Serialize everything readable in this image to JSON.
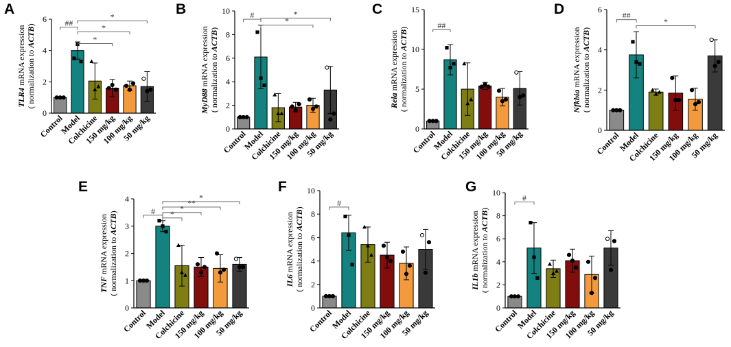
{
  "figure": {
    "background": "#ffffff"
  },
  "colors": [
    "#8a8a8a",
    "#14827e",
    "#7e7e14",
    "#820d0d",
    "#f39a3d",
    "#3a3a3a"
  ],
  "chart_data": [
    {
      "panel": "A",
      "type": "bar",
      "categories": [
        "Control",
        "Model",
        "Colchicine",
        "150 mg/kg",
        "100 mg/kg",
        "50 mg/kg"
      ],
      "values": [
        1.0,
        4.0,
        2.05,
        1.6,
        1.75,
        1.7
      ],
      "errors": [
        0.02,
        0.55,
        1.15,
        0.55,
        0.3,
        0.95
      ],
      "points": [
        [
          1,
          1,
          1
        ],
        [
          3.5,
          4.4,
          3.3
        ],
        [
          3.3,
          1.5,
          1.7
        ],
        [
          1.6,
          1.8,
          1.5
        ],
        [
          1.75,
          1.5,
          1.9
        ],
        [
          2.2,
          1.4,
          1.5
        ]
      ],
      "markers": [
        "circle",
        "square",
        "triangle",
        "circle",
        "circle",
        "circle"
      ],
      "ylabel_gene": "TLR4",
      "ylabel_rest": " mRNA expression",
      "ylabel_line2_pre": "( normalization to ",
      "ylabel_line2_gene": "ACTB",
      "ylabel_line2_post": ")",
      "ylim": [
        0,
        6
      ],
      "yticks": [
        "0",
        "2",
        "4",
        "6"
      ],
      "yticks_values": [
        0,
        2,
        4,
        6
      ],
      "significance": [
        {
          "from": 0,
          "to": 1,
          "label": "##",
          "level": 5.5
        },
        {
          "from": 1,
          "to": 5,
          "label": "*",
          "level": 5.9
        },
        {
          "from": 1,
          "to": 4,
          "label": "*",
          "level": 5.2
        },
        {
          "from": 1,
          "to": 3,
          "label": "*",
          "level": 4.45
        }
      ]
    },
    {
      "panel": "B",
      "type": "bar",
      "categories": [
        "Control",
        "Model",
        "Colchicine",
        "150 mg/kg",
        "100 mg/kg",
        "50 mg/kg"
      ],
      "values": [
        1.0,
        6.1,
        1.8,
        1.85,
        2.0,
        3.3
      ],
      "errors": [
        0.02,
        2.7,
        1.2,
        0.4,
        0.6,
        2.0
      ],
      "points": [
        [
          1,
          1,
          1
        ],
        [
          8.2,
          4.3,
          3.7
        ],
        [
          2.9,
          1.3,
          1.3
        ],
        [
          1.9,
          1.6,
          2.1
        ],
        [
          2.5,
          1.7,
          1.9
        ],
        [
          5.2,
          0.8,
          1.3
        ]
      ],
      "markers": [
        "circle",
        "square",
        "triangle",
        "circle",
        "circle",
        "circle"
      ],
      "ylabel_gene": "MyD88",
      "ylabel_rest": " mRNA expression",
      "ylabel_line2_pre": "( normalization to ",
      "ylabel_line2_gene": "ACTB",
      "ylabel_line2_post": ")",
      "ylim": [
        0,
        10
      ],
      "yticks": [
        "0",
        "2",
        "4",
        "6",
        "8",
        "10"
      ],
      "yticks_values": [
        0,
        2,
        4,
        6,
        8,
        10
      ],
      "significance": [
        {
          "from": 0,
          "to": 1,
          "label": "#",
          "level": 9.3
        },
        {
          "from": 1,
          "to": 5,
          "label": "*",
          "level": 9.4
        },
        {
          "from": 1,
          "to": 4,
          "label": "*",
          "level": 8.8
        }
      ]
    },
    {
      "panel": "C",
      "type": "bar",
      "categories": [
        "Control",
        "Model",
        "Colchicine",
        "150 mg/kg",
        "100 mg/kg",
        "50 mg/kg"
      ],
      "values": [
        1.0,
        8.7,
        5.0,
        5.4,
        4.0,
        5.1
      ],
      "errors": [
        0.02,
        1.9,
        3.3,
        0.45,
        1.1,
        2.1
      ],
      "points": [
        [
          1,
          1,
          1
        ],
        [
          10.2,
          7.7,
          8.2
        ],
        [
          8.2,
          3.2,
          3.7
        ],
        [
          5.3,
          5.6,
          5.3
        ],
        [
          4.8,
          3.5,
          3.7
        ],
        [
          7.1,
          4.0,
          4.2
        ]
      ],
      "markers": [
        "circle",
        "square",
        "triangle",
        "circle",
        "circle",
        "circle"
      ],
      "ylabel_gene": "Rela",
      "ylabel_rest": " mRNA expression",
      "ylabel_line2_pre": "( normalization to ",
      "ylabel_line2_gene": "ACTB",
      "ylabel_line2_post": ")",
      "ylim": [
        0,
        15
      ],
      "yticks": [
        "0",
        "5",
        "10",
        "15"
      ],
      "yticks_values": [
        0,
        5,
        10,
        15
      ],
      "significance": [
        {
          "from": 0,
          "to": 1,
          "label": "##",
          "level": 12.5
        }
      ]
    },
    {
      "panel": "D",
      "type": "bar",
      "categories": [
        "Control",
        "Model",
        "Colchicine",
        "150 mg/kg",
        "100 mg/kg",
        "50 mg/kg"
      ],
      "values": [
        1.0,
        3.75,
        1.9,
        1.85,
        1.55,
        3.7
      ],
      "errors": [
        0.02,
        1.15,
        0.15,
        0.85,
        0.55,
        0.8
      ],
      "points": [
        [
          1,
          1,
          1
        ],
        [
          4.4,
          3.4,
          3.3
        ],
        [
          2.0,
          1.8,
          1.9
        ],
        [
          2.6,
          1.5,
          1.5
        ],
        [
          2.0,
          1.3,
          1.4
        ],
        [
          4.5,
          3.2,
          3.4
        ]
      ],
      "markers": [
        "circle",
        "square",
        "triangle",
        "circle",
        "circle",
        "circle"
      ],
      "ylabel_gene": "Nfkbia",
      "ylabel_rest": " mRNA expression",
      "ylabel_line2_pre": "( normalization to ",
      "ylabel_line2_gene": "ACTB",
      "ylabel_line2_post": ")",
      "ylim": [
        0,
        6
      ],
      "yticks": [
        "0",
        "2",
        "4",
        "6"
      ],
      "yticks_values": [
        0,
        2,
        4,
        6
      ],
      "significance": [
        {
          "from": 0,
          "to": 1,
          "label": "##",
          "level": 5.5
        },
        {
          "from": 1,
          "to": 4,
          "label": "*",
          "level": 5.2
        }
      ]
    },
    {
      "panel": "E",
      "type": "bar",
      "categories": [
        "Control",
        "Model",
        "Colchicine",
        "150 mg/kg",
        "100 mg/kg",
        "50 mg/kg"
      ],
      "values": [
        1.0,
        3.0,
        1.55,
        1.5,
        1.45,
        1.6
      ],
      "errors": [
        0.02,
        0.2,
        0.75,
        0.35,
        0.5,
        0.25
      ],
      "points": [
        [
          1,
          1,
          1
        ],
        [
          3.2,
          3.0,
          2.8
        ],
        [
          2.3,
          1.3,
          1.2
        ],
        [
          1.6,
          1.3,
          1.5
        ],
        [
          2.0,
          1.3,
          1.4
        ],
        [
          1.8,
          1.5,
          1.5
        ]
      ],
      "markers": [
        "circle",
        "square",
        "triangle",
        "circle",
        "circle",
        "circle"
      ],
      "ylabel_gene": "TNF",
      "ylabel_rest": " mRNA expression",
      "ylabel_line2_pre": "( normalization to ",
      "ylabel_line2_gene": "ACTB",
      "ylabel_line2_post": ")",
      "ylim": [
        0,
        4
      ],
      "yticks": [
        "0",
        "1",
        "2",
        "3",
        "4"
      ],
      "yticks_values": [
        0,
        1,
        2,
        3,
        4
      ],
      "significance": [
        {
          "from": 0,
          "to": 1,
          "label": "#",
          "level": 3.4
        },
        {
          "from": 1,
          "to": 5,
          "label": "*",
          "level": 3.9
        },
        {
          "from": 1,
          "to": 4,
          "label": "**",
          "level": 3.7
        },
        {
          "from": 1,
          "to": 3,
          "label": "*",
          "level": 3.5
        },
        {
          "from": 1,
          "to": 2,
          "label": "*",
          "level": 3.3
        }
      ]
    },
    {
      "panel": "F",
      "type": "bar",
      "categories": [
        "Control",
        "Model",
        "Colchicine",
        "150 mg/kg",
        "100 mg/kg",
        "50 mg/kg"
      ],
      "values": [
        1.0,
        6.4,
        5.4,
        4.5,
        3.8,
        5.0
      ],
      "errors": [
        0.02,
        1.5,
        1.5,
        1.1,
        1.4,
        1.7
      ],
      "points": [
        [
          1,
          1,
          1
        ],
        [
          7.8,
          6.2,
          3.7
        ],
        [
          6.9,
          5.3,
          4.5
        ],
        [
          5.3,
          4.3,
          4.0
        ],
        [
          4.8,
          2.9,
          3.6
        ],
        [
          6.2,
          3.0,
          5.6
        ]
      ],
      "markers": [
        "circle",
        "square",
        "triangle",
        "circle",
        "circle",
        "circle"
      ],
      "ylabel_gene": "IL6",
      "ylabel_rest": " mRNA expression",
      "ylabel_line2_pre": "( normalization to ",
      "ylabel_line2_gene": "ACTB",
      "ylabel_line2_post": ")",
      "ylim": [
        0,
        10
      ],
      "yticks": [
        "0",
        "2",
        "4",
        "6",
        "8",
        "10"
      ],
      "yticks_values": [
        0,
        2,
        4,
        6,
        8,
        10
      ],
      "significance": [
        {
          "from": 0,
          "to": 1,
          "label": "#",
          "level": 8.6
        }
      ]
    },
    {
      "panel": "G",
      "type": "bar",
      "categories": [
        "Control",
        "Model",
        "Colchicine",
        "150 mg/kg",
        "100 mg/kg",
        "50 mg/kg"
      ],
      "values": [
        1.0,
        5.2,
        3.4,
        4.1,
        2.9,
        5.2
      ],
      "errors": [
        0.02,
        2.2,
        0.75,
        1.0,
        1.6,
        1.5
      ],
      "points": [
        [
          1,
          1,
          1
        ],
        [
          7.4,
          4.4,
          2.6
        ],
        [
          3.8,
          3.0,
          3.2
        ],
        [
          4.6,
          4.1,
          3.5
        ],
        [
          4.0,
          1.3,
          2.6
        ],
        [
          6.0,
          3.3,
          5.8
        ]
      ],
      "markers": [
        "circle",
        "square",
        "triangle",
        "circle",
        "circle",
        "circle"
      ],
      "ylabel_gene": "IL1b",
      "ylabel_rest": " mRNA expression",
      "ylabel_line2_pre": "( normalization to ",
      "ylabel_line2_gene": "ACTB",
      "ylabel_line2_post": ")",
      "ylim": [
        0,
        10
      ],
      "yticks": [
        "0",
        "2",
        "4",
        "6",
        "8",
        "10"
      ],
      "yticks_values": [
        0,
        2,
        4,
        6,
        8,
        10
      ],
      "significance": [
        {
          "from": 0,
          "to": 1,
          "label": "#",
          "level": 9.2
        }
      ]
    }
  ]
}
